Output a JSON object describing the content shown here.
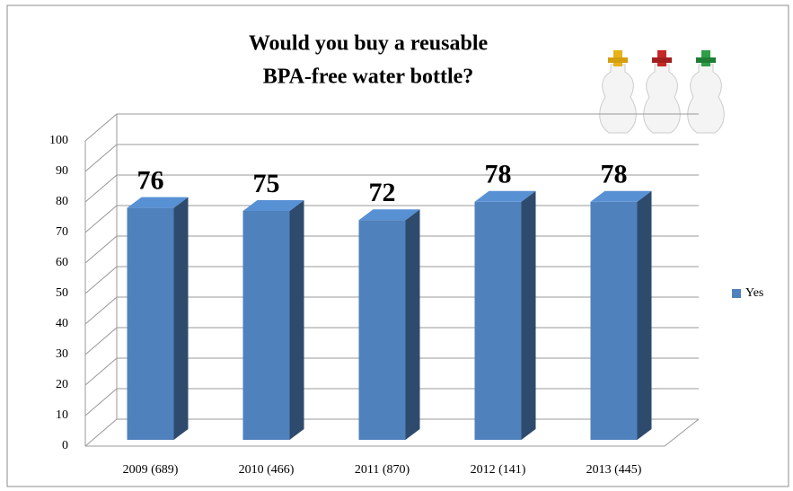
{
  "chart_data": {
    "type": "bar3d",
    "title": [
      "Would you buy a reusable",
      "BPA-free water bottle?"
    ],
    "categories": [
      "2009 (689)",
      "2010 (466)",
      "2011 (870)",
      "2012 (141)",
      "2013 (445)"
    ],
    "series": [
      {
        "name": "Yes",
        "color": "#4f81bd",
        "values": [
          76,
          75,
          72,
          78,
          78
        ]
      }
    ],
    "ylim": [
      0,
      100
    ],
    "yticks": [
      0,
      10,
      20,
      30,
      40,
      50,
      60,
      70,
      80,
      90,
      100
    ],
    "grid": true,
    "legend": "right"
  }
}
